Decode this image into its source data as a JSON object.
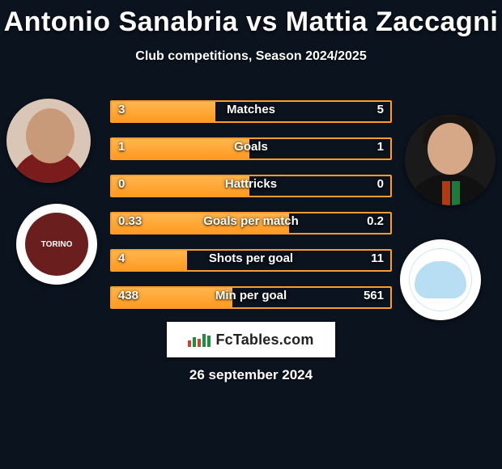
{
  "background_color": "#0b131e",
  "title": {
    "text": "Antonio Sanabria vs Mattia Zaccagni",
    "color": "#ffffff",
    "fontsize": 34,
    "fontweight": 800
  },
  "subtitle": {
    "text": "Club competitions, Season 2024/2025",
    "color": "#ffffff",
    "fontsize": 16
  },
  "player_left": {
    "name": "Antonio Sanabria",
    "club": "Torino"
  },
  "player_right": {
    "name": "Mattia Zaccagni",
    "club": "Lazio"
  },
  "chart": {
    "type": "comparison-bars",
    "bar_border_color": "#ff9c2b",
    "bar_fill_gradient": [
      "#ffb64d",
      "#ff9a22"
    ],
    "text_color": "#ffffff",
    "label_fontsize": 15,
    "value_fontsize": 15,
    "rows": [
      {
        "label": "Matches",
        "left": "3",
        "right": "5",
        "fill_pct": 38
      },
      {
        "label": "Goals",
        "left": "1",
        "right": "1",
        "fill_pct": 50
      },
      {
        "label": "Hattricks",
        "left": "0",
        "right": "0",
        "fill_pct": 50
      },
      {
        "label": "Goals per match",
        "left": "0.33",
        "right": "0.2",
        "fill_pct": 64
      },
      {
        "label": "Shots per goal",
        "left": "4",
        "right": "11",
        "fill_pct": 28
      },
      {
        "label": "Min per goal",
        "left": "438",
        "right": "561",
        "fill_pct": 44
      }
    ]
  },
  "badge": {
    "text": "FcTables.com",
    "background": "#ffffff",
    "text_color": "#222222"
  },
  "date": {
    "text": "26 september 2024",
    "color": "#ffffff",
    "fontsize": 17
  }
}
